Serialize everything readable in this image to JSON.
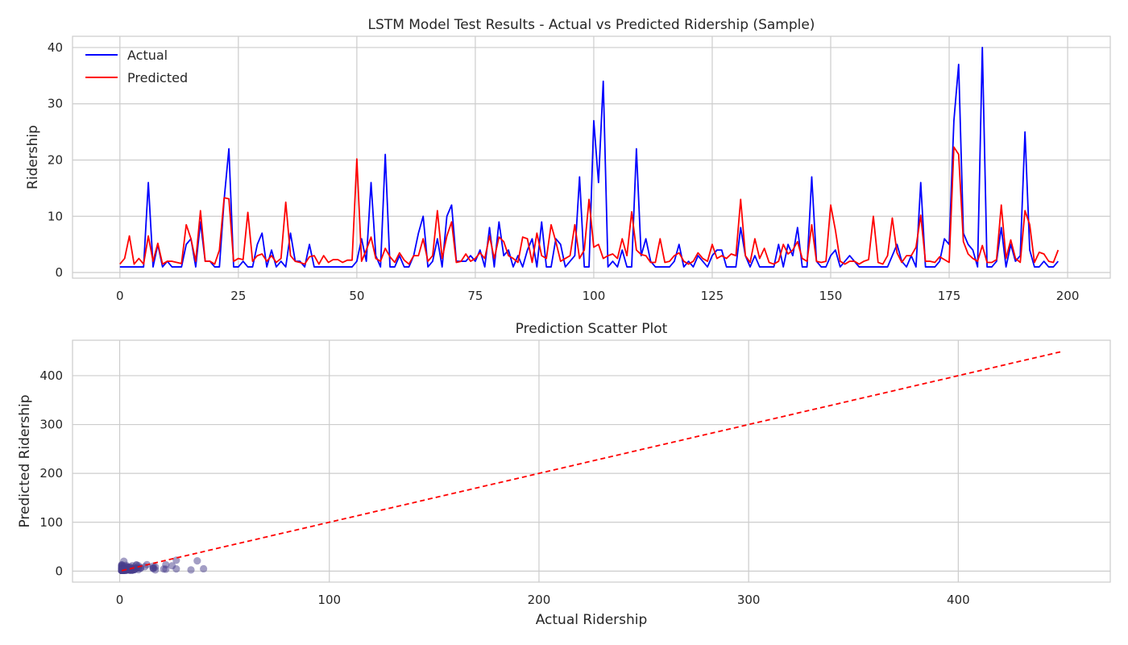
{
  "chart_data": [
    {
      "type": "line",
      "title": "LSTM Model Test Results - Actual vs Predicted Ridership (Sample)",
      "xlabel": "",
      "ylabel": "Ridership",
      "xlim": [
        -10,
        209
      ],
      "ylim": [
        -1,
        42
      ],
      "xticks": [
        0,
        25,
        50,
        75,
        100,
        125,
        150,
        175,
        200
      ],
      "yticks": [
        0,
        10,
        20,
        30,
        40
      ],
      "grid": true,
      "legend": "top-left",
      "series": [
        {
          "name": "Actual",
          "color": "#0000ff",
          "values": [
            1,
            1,
            1,
            1,
            1,
            1,
            16,
            1,
            5,
            1,
            2,
            1,
            1,
            1,
            5,
            6,
            1,
            9,
            2,
            2,
            1,
            1,
            13,
            22,
            1,
            1,
            2,
            1,
            1,
            5,
            7,
            1,
            4,
            1,
            2,
            1,
            7,
            2,
            2,
            1,
            5,
            1,
            1,
            1,
            1,
            1,
            1,
            1,
            1,
            1,
            2,
            6,
            2,
            16,
            3,
            1,
            21,
            1,
            1,
            3,
            1,
            1,
            3,
            7,
            10,
            1,
            2,
            6,
            1,
            10,
            12,
            2,
            2,
            2,
            3,
            2,
            4,
            1,
            8,
            1,
            9,
            3,
            4,
            1,
            3,
            1,
            4,
            6,
            1,
            9,
            1,
            1,
            6,
            5,
            1,
            2,
            3,
            17,
            1,
            1,
            27,
            16,
            34,
            1,
            2,
            1,
            4,
            1,
            1,
            22,
            3,
            6,
            2,
            1,
            1,
            1,
            1,
            2,
            5,
            1,
            2,
            1,
            3,
            2,
            1,
            3,
            4,
            4,
            1,
            1,
            1,
            8,
            3,
            1,
            3,
            1,
            1,
            1,
            1,
            5,
            1,
            5,
            3,
            8,
            1,
            1,
            17,
            2,
            1,
            1,
            3,
            4,
            1,
            2,
            3,
            2,
            1,
            1,
            1,
            1,
            1,
            1,
            1,
            3,
            5,
            2,
            1,
            3,
            1,
            16,
            1,
            1,
            1,
            2,
            6,
            5,
            27,
            37,
            7,
            5,
            4,
            1,
            40,
            1,
            1,
            2,
            8,
            1,
            5,
            2,
            3,
            25,
            4,
            1,
            1,
            2,
            1,
            1,
            2
          ],
          "label": "Actual"
        },
        {
          "name": "Predicted",
          "color": "#ff0000",
          "values": [
            1.5,
            2.5,
            6.5,
            1.5,
            2.5,
            1.5,
            6.5,
            2,
            5.2,
            1.5,
            2,
            2,
            1.8,
            1.6,
            8.5,
            6,
            2,
            11,
            2,
            2,
            1.5,
            4,
            13.3,
            13.1,
            2,
            2.5,
            2.3,
            10.7,
            2,
            3,
            3.3,
            2,
            3,
            1.8,
            2.5,
            12.5,
            3,
            2,
            1.8,
            1.5,
            2.8,
            3,
            1.5,
            3,
            1.8,
            2.3,
            2.3,
            1.8,
            2.2,
            2.2,
            20.2,
            2,
            4,
            6.3,
            2.5,
            2,
            4.3,
            2.8,
            1.8,
            3.5,
            2.2,
            1.5,
            3,
            3,
            6,
            2,
            3,
            11,
            2.5,
            6.5,
            9,
            1.8,
            2,
            3.3,
            2,
            2.5,
            3.5,
            2.5,
            6.5,
            2.5,
            6.3,
            5.5,
            3,
            2.5,
            1.8,
            6.3,
            6,
            1.8,
            7,
            3,
            2.5,
            8.5,
            5.5,
            2,
            2.5,
            3,
            8.5,
            2.5,
            4,
            13,
            4.5,
            5,
            2.5,
            3,
            3.3,
            2.5,
            6,
            3,
            10.8,
            4,
            3.2,
            3,
            1.8,
            1.8,
            6,
            1.8,
            2,
            3,
            3.5,
            2,
            1.5,
            2,
            3.5,
            2.5,
            2,
            5,
            2.5,
            3,
            2.5,
            3.3,
            3,
            13,
            3,
            1.8,
            6,
            2.5,
            4.3,
            1.8,
            1.5,
            2,
            5,
            3.3,
            4,
            5.5,
            2.5,
            2,
            8.5,
            2,
            1.8,
            2,
            12,
            7.5,
            2,
            1.5,
            2,
            2,
            1.5,
            2,
            2.3,
            10,
            1.8,
            1.5,
            3,
            9.7,
            3.5,
            1.8,
            3,
            3,
            4.5,
            10.2,
            2,
            2,
            1.8,
            2.8,
            2.3,
            1.8,
            22.3,
            21,
            5.5,
            3.3,
            2.5,
            2,
            4.8,
            1.8,
            1.8,
            2.3,
            12,
            2.5,
            5.8,
            2.5,
            1.8,
            11,
            8.5,
            1.8,
            3.6,
            3.3,
            2,
            1.8,
            4
          ]
        }
      ]
    },
    {
      "type": "scatter",
      "title": "Prediction Scatter Plot",
      "xlabel": "Actual Ridership",
      "ylabel": "Predicted Ridership",
      "xlim": [
        -22.5,
        472.5
      ],
      "ylim": [
        -22.5,
        472.5
      ],
      "xticks": [
        0,
        100,
        200,
        300,
        400
      ],
      "yticks": [
        0,
        100,
        200,
        300,
        400
      ],
      "grid": true,
      "point_color": "#483d8b",
      "reference_line": {
        "x": [
          1,
          450
        ],
        "y": [
          1,
          450
        ],
        "color": "#ff0000",
        "style": "dashed"
      },
      "points": [
        [
          1,
          1.5
        ],
        [
          1,
          2.5
        ],
        [
          1,
          6.5
        ],
        [
          1,
          1.5
        ],
        [
          1,
          2.5
        ],
        [
          1,
          1.5
        ],
        [
          16,
          6.5
        ],
        [
          1,
          2
        ],
        [
          5,
          5.2
        ],
        [
          1,
          1.5
        ],
        [
          2,
          2
        ],
        [
          1,
          2
        ],
        [
          1,
          1.8
        ],
        [
          1,
          1.6
        ],
        [
          5,
          8.5
        ],
        [
          6,
          6
        ],
        [
          1,
          2
        ],
        [
          9,
          11
        ],
        [
          2,
          2
        ],
        [
          2,
          2
        ],
        [
          1,
          1.5
        ],
        [
          1,
          4
        ],
        [
          13,
          13.3
        ],
        [
          22,
          13.1
        ],
        [
          1,
          2
        ],
        [
          1,
          2.5
        ],
        [
          2,
          2.3
        ],
        [
          1,
          10.7
        ],
        [
          1,
          2
        ],
        [
          5,
          3
        ],
        [
          7,
          3.3
        ],
        [
          1,
          2
        ],
        [
          4,
          3
        ],
        [
          1,
          1.8
        ],
        [
          2,
          2.5
        ],
        [
          1,
          12.5
        ],
        [
          7,
          3
        ],
        [
          2,
          2
        ],
        [
          2,
          1.8
        ],
        [
          1,
          1.5
        ],
        [
          5,
          2.8
        ],
        [
          1,
          3
        ],
        [
          1,
          1.5
        ],
        [
          1,
          3
        ],
        [
          1,
          1.8
        ],
        [
          1,
          2.3
        ],
        [
          1,
          2.3
        ],
        [
          1,
          1.8
        ],
        [
          1,
          2.2
        ],
        [
          1,
          2.2
        ],
        [
          2,
          20.2
        ],
        [
          6,
          2
        ],
        [
          2,
          4
        ],
        [
          16,
          6.3
        ],
        [
          3,
          2.5
        ],
        [
          1,
          2
        ],
        [
          21,
          4.3
        ],
        [
          1,
          2.8
        ],
        [
          1,
          1.8
        ],
        [
          3,
          3.5
        ],
        [
          1,
          2.2
        ],
        [
          1,
          1.5
        ],
        [
          3,
          3
        ],
        [
          7,
          3
        ],
        [
          10,
          6
        ],
        [
          1,
          2
        ],
        [
          2,
          3
        ],
        [
          6,
          11
        ],
        [
          1,
          2.5
        ],
        [
          10,
          6.5
        ],
        [
          12,
          9
        ],
        [
          2,
          1.8
        ],
        [
          2,
          2
        ],
        [
          2,
          3.3
        ],
        [
          3,
          2
        ],
        [
          2,
          2.5
        ],
        [
          4,
          3.5
        ],
        [
          1,
          2.5
        ],
        [
          8,
          6.5
        ],
        [
          1,
          2.5
        ],
        [
          9,
          6.3
        ],
        [
          3,
          5.5
        ],
        [
          4,
          3
        ],
        [
          1,
          2.5
        ],
        [
          3,
          1.8
        ],
        [
          1,
          6.3
        ],
        [
          4,
          6
        ],
        [
          6,
          1.8
        ],
        [
          1,
          7
        ],
        [
          9,
          3
        ],
        [
          1,
          2.5
        ],
        [
          1,
          8.5
        ],
        [
          6,
          5.5
        ],
        [
          5,
          2
        ],
        [
          1,
          2.5
        ],
        [
          2,
          3
        ],
        [
          3,
          8.5
        ],
        [
          17,
          2.5
        ],
        [
          1,
          4
        ],
        [
          1,
          13
        ],
        [
          27,
          4.5
        ],
        [
          16,
          5
        ],
        [
          34,
          2.5
        ],
        [
          1,
          3
        ],
        [
          2,
          3.3
        ],
        [
          1,
          2.5
        ],
        [
          4,
          6
        ],
        [
          1,
          3
        ],
        [
          1,
          10.8
        ],
        [
          22,
          4
        ],
        [
          3,
          3.2
        ],
        [
          6,
          3
        ],
        [
          2,
          1.8
        ],
        [
          1,
          1.8
        ],
        [
          1,
          6
        ],
        [
          1,
          1.8
        ],
        [
          1,
          2
        ],
        [
          2,
          3
        ],
        [
          5,
          3.5
        ],
        [
          1,
          2
        ],
        [
          2,
          1.5
        ],
        [
          1,
          2
        ],
        [
          3,
          3.5
        ],
        [
          2,
          2.5
        ],
        [
          1,
          2
        ],
        [
          3,
          5
        ],
        [
          4,
          2.5
        ],
        [
          4,
          3
        ],
        [
          1,
          2.5
        ],
        [
          1,
          3.3
        ],
        [
          1,
          3
        ],
        [
          8,
          13
        ],
        [
          3,
          3
        ],
        [
          1,
          1.8
        ],
        [
          3,
          6
        ],
        [
          1,
          2.5
        ],
        [
          1,
          4.3
        ],
        [
          1,
          1.8
        ],
        [
          1,
          1.5
        ],
        [
          5,
          2
        ],
        [
          1,
          5
        ],
        [
          5,
          3.3
        ],
        [
          3,
          4
        ],
        [
          8,
          5.5
        ],
        [
          1,
          2.5
        ],
        [
          1,
          2
        ],
        [
          17,
          8.5
        ],
        [
          2,
          2
        ],
        [
          1,
          1.8
        ],
        [
          1,
          2
        ],
        [
          3,
          12
        ],
        [
          4,
          7.5
        ],
        [
          1,
          2
        ],
        [
          2,
          1.5
        ],
        [
          3,
          2
        ],
        [
          2,
          2
        ],
        [
          1,
          1.5
        ],
        [
          1,
          2
        ],
        [
          1,
          2.3
        ],
        [
          1,
          10
        ],
        [
          1,
          1.8
        ],
        [
          1,
          1.5
        ],
        [
          1,
          3
        ],
        [
          3,
          9.7
        ],
        [
          5,
          3.5
        ],
        [
          2,
          1.8
        ],
        [
          1,
          3
        ],
        [
          3,
          3
        ],
        [
          1,
          4.5
        ],
        [
          16,
          10.2
        ],
        [
          1,
          2
        ],
        [
          1,
          2
        ],
        [
          1,
          1.8
        ],
        [
          2,
          2.8
        ],
        [
          6,
          2.3
        ],
        [
          5,
          1.8
        ],
        [
          27,
          22.3
        ],
        [
          37,
          21
        ],
        [
          7,
          5.5
        ],
        [
          5,
          3.3
        ],
        [
          4,
          2.5
        ],
        [
          1,
          2
        ],
        [
          40,
          4.8
        ],
        [
          1,
          1.8
        ],
        [
          1,
          1.8
        ],
        [
          2,
          2.3
        ],
        [
          8,
          12
        ],
        [
          1,
          2.5
        ],
        [
          5,
          5.8
        ],
        [
          2,
          2.5
        ],
        [
          3,
          1.8
        ],
        [
          25,
          11
        ],
        [
          4,
          8.5
        ],
        [
          1,
          1.8
        ],
        [
          1,
          3.6
        ],
        [
          2,
          3.3
        ],
        [
          1,
          2
        ],
        [
          1,
          1.8
        ],
        [
          2,
          4
        ]
      ]
    }
  ]
}
